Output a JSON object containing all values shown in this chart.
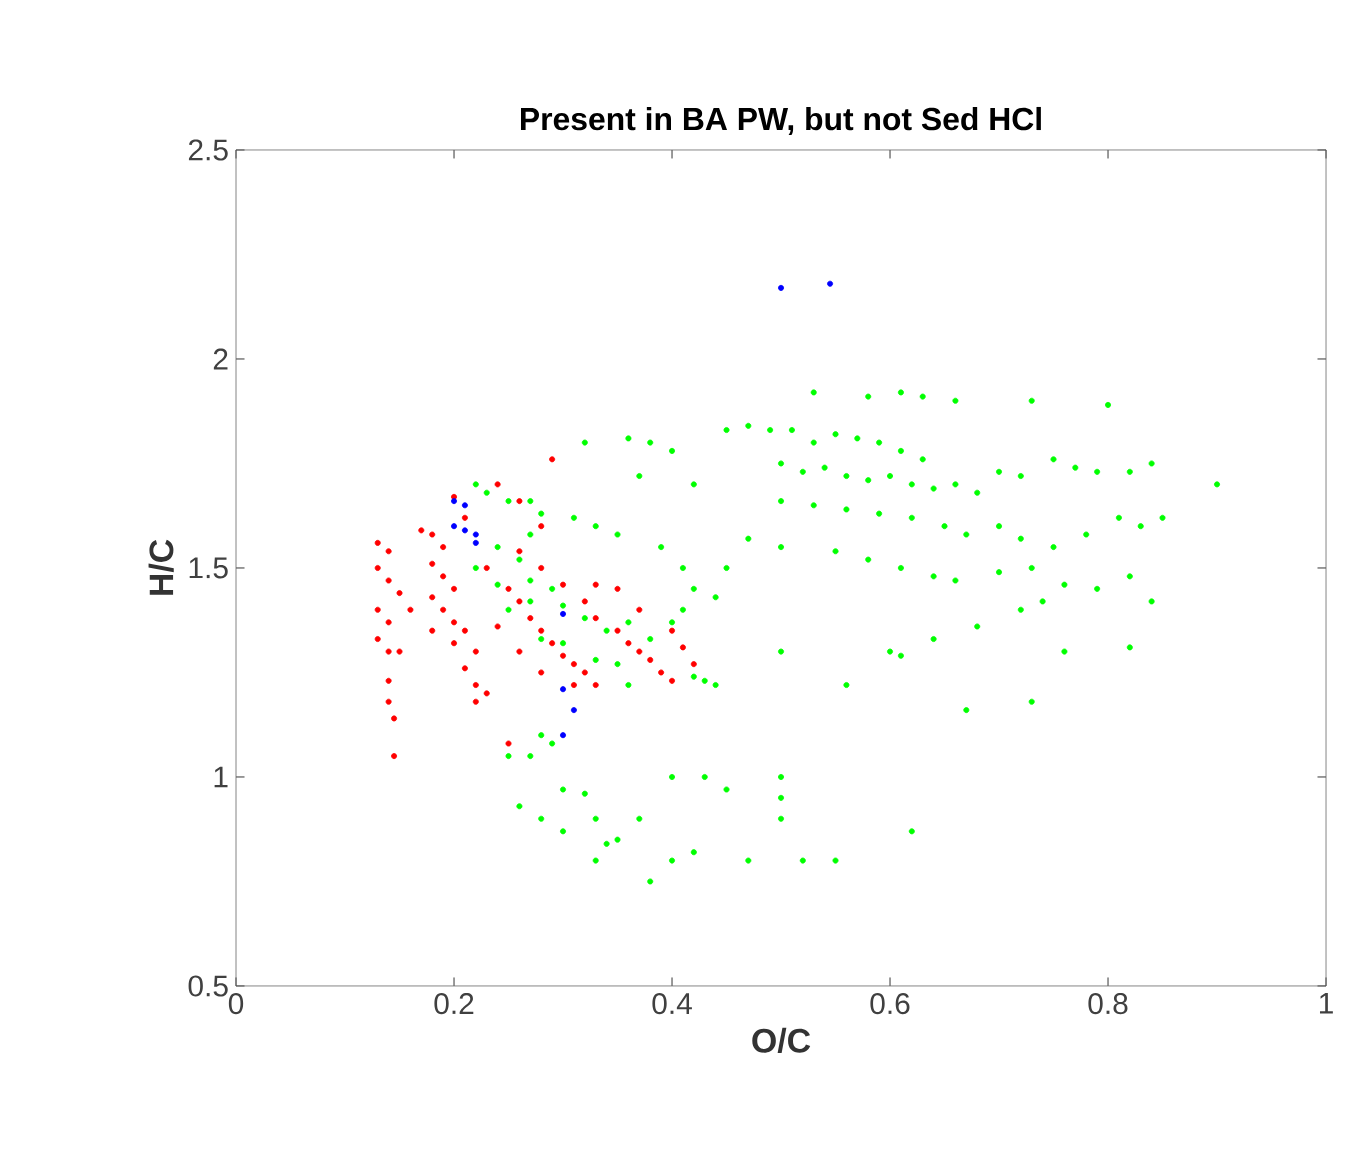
{
  "chart_data": {
    "type": "scatter",
    "title": "Present in BA PW, but not Sed HCl",
    "xlabel": "O/C",
    "ylabel": "H/C",
    "xlim": [
      0,
      1
    ],
    "ylim": [
      0.5,
      2.5
    ],
    "xticks": [
      0,
      0.2,
      0.4,
      0.6,
      0.8,
      1
    ],
    "yticks": [
      0.5,
      1,
      1.5,
      2,
      2.5
    ],
    "grid": false,
    "marker": "circle",
    "series": [
      {
        "color": "#00ff00",
        "x": [
          0.22,
          0.23,
          0.25,
          0.27,
          0.28,
          0.27,
          0.24,
          0.26,
          0.22,
          0.24,
          0.27,
          0.29,
          0.25,
          0.27,
          0.3,
          0.32,
          0.34,
          0.36,
          0.38,
          0.4,
          0.41,
          0.42,
          0.41,
          0.39,
          0.31,
          0.33,
          0.35,
          0.32,
          0.36,
          0.38,
          0.4,
          0.42,
          0.37,
          0.28,
          0.3,
          0.33,
          0.35,
          0.36,
          0.42,
          0.43,
          0.44,
          0.25,
          0.27,
          0.28,
          0.29,
          0.26,
          0.28,
          0.3,
          0.32,
          0.33,
          0.34,
          0.35,
          0.37,
          0.4,
          0.4,
          0.42,
          0.38,
          0.3,
          0.33,
          0.45,
          0.43,
          0.47,
          0.5,
          0.5,
          0.5,
          0.52,
          0.55,
          0.62,
          0.56,
          0.5,
          0.6,
          0.73,
          0.67,
          0.76,
          0.82,
          0.53,
          0.58,
          0.61,
          0.63,
          0.66,
          0.73,
          0.8,
          0.45,
          0.47,
          0.49,
          0.51,
          0.53,
          0.55,
          0.57,
          0.59,
          0.61,
          0.63,
          0.5,
          0.52,
          0.54,
          0.56,
          0.58,
          0.6,
          0.62,
          0.64,
          0.66,
          0.68,
          0.7,
          0.72,
          0.75,
          0.77,
          0.79,
          0.82,
          0.84,
          0.9,
          0.5,
          0.53,
          0.56,
          0.59,
          0.62,
          0.65,
          0.67,
          0.7,
          0.72,
          0.75,
          0.78,
          0.81,
          0.83,
          0.85,
          0.47,
          0.5,
          0.55,
          0.58,
          0.61,
          0.64,
          0.66,
          0.7,
          0.73,
          0.76,
          0.79,
          0.82,
          0.84,
          0.74,
          0.72,
          0.68,
          0.64,
          0.61,
          0.45,
          0.44
        ],
        "values": [
          1.7,
          1.68,
          1.66,
          1.66,
          1.63,
          1.58,
          1.55,
          1.52,
          1.5,
          1.46,
          1.47,
          1.45,
          1.4,
          1.42,
          1.41,
          1.38,
          1.35,
          1.37,
          1.33,
          1.37,
          1.4,
          1.45,
          1.5,
          1.55,
          1.62,
          1.6,
          1.58,
          1.8,
          1.81,
          1.8,
          1.78,
          1.7,
          1.72,
          1.33,
          1.32,
          1.28,
          1.27,
          1.22,
          1.24,
          1.23,
          1.22,
          1.05,
          1.05,
          1.1,
          1.08,
          0.93,
          0.9,
          0.97,
          0.96,
          0.9,
          0.84,
          0.85,
          0.9,
          1.0,
          0.8,
          0.82,
          0.75,
          0.87,
          0.8,
          0.97,
          1.0,
          0.8,
          0.9,
          0.95,
          1.0,
          0.8,
          0.8,
          0.87,
          1.22,
          1.3,
          1.3,
          1.18,
          1.16,
          1.3,
          1.31,
          1.92,
          1.91,
          1.92,
          1.91,
          1.9,
          1.9,
          1.89,
          1.83,
          1.84,
          1.83,
          1.83,
          1.8,
          1.82,
          1.81,
          1.8,
          1.78,
          1.76,
          1.75,
          1.73,
          1.74,
          1.72,
          1.71,
          1.72,
          1.7,
          1.69,
          1.7,
          1.68,
          1.73,
          1.72,
          1.76,
          1.74,
          1.73,
          1.73,
          1.75,
          1.7,
          1.66,
          1.65,
          1.64,
          1.63,
          1.62,
          1.6,
          1.58,
          1.6,
          1.57,
          1.55,
          1.58,
          1.62,
          1.6,
          1.62,
          1.57,
          1.55,
          1.54,
          1.52,
          1.5,
          1.48,
          1.47,
          1.49,
          1.5,
          1.46,
          1.45,
          1.48,
          1.42,
          1.42,
          1.4,
          1.36,
          1.33,
          1.29,
          1.5,
          1.43
        ]
      },
      {
        "color": "#ff0000",
        "x": [
          0.13,
          0.14,
          0.13,
          0.14,
          0.15,
          0.13,
          0.14,
          0.13,
          0.14,
          0.15,
          0.14,
          0.14,
          0.145,
          0.145,
          0.17,
          0.18,
          0.19,
          0.18,
          0.19,
          0.2,
          0.18,
          0.19,
          0.2,
          0.21,
          0.2,
          0.22,
          0.21,
          0.22,
          0.23,
          0.22,
          0.21,
          0.2,
          0.24,
          0.26,
          0.28,
          0.23,
          0.25,
          0.26,
          0.27,
          0.28,
          0.29,
          0.3,
          0.31,
          0.32,
          0.33,
          0.28,
          0.3,
          0.32,
          0.33,
          0.35,
          0.36,
          0.37,
          0.38,
          0.39,
          0.4,
          0.33,
          0.35,
          0.37,
          0.4,
          0.41,
          0.42,
          0.29,
          0.26,
          0.24,
          0.26,
          0.28,
          0.25,
          0.31,
          0.18,
          0.16
        ],
        "values": [
          1.56,
          1.54,
          1.5,
          1.47,
          1.44,
          1.4,
          1.37,
          1.33,
          1.3,
          1.3,
          1.23,
          1.18,
          1.14,
          1.05,
          1.59,
          1.58,
          1.55,
          1.51,
          1.48,
          1.45,
          1.43,
          1.4,
          1.37,
          1.35,
          1.32,
          1.3,
          1.26,
          1.22,
          1.2,
          1.18,
          1.62,
          1.67,
          1.7,
          1.66,
          1.6,
          1.5,
          1.45,
          1.42,
          1.38,
          1.35,
          1.32,
          1.29,
          1.27,
          1.25,
          1.22,
          1.5,
          1.46,
          1.42,
          1.38,
          1.35,
          1.32,
          1.3,
          1.28,
          1.25,
          1.23,
          1.46,
          1.45,
          1.4,
          1.35,
          1.31,
          1.27,
          1.76,
          1.54,
          1.36,
          1.3,
          1.25,
          1.08,
          1.22,
          1.35,
          1.4
        ]
      },
      {
        "color": "#0000ff",
        "x": [
          0.5,
          0.545,
          0.2,
          0.21,
          0.2,
          0.21,
          0.22,
          0.3,
          0.3,
          0.31,
          0.3,
          0.22
        ],
        "values": [
          2.17,
          2.18,
          1.66,
          1.65,
          1.6,
          1.59,
          1.56,
          1.39,
          1.21,
          1.16,
          1.1,
          1.58
        ]
      }
    ]
  }
}
